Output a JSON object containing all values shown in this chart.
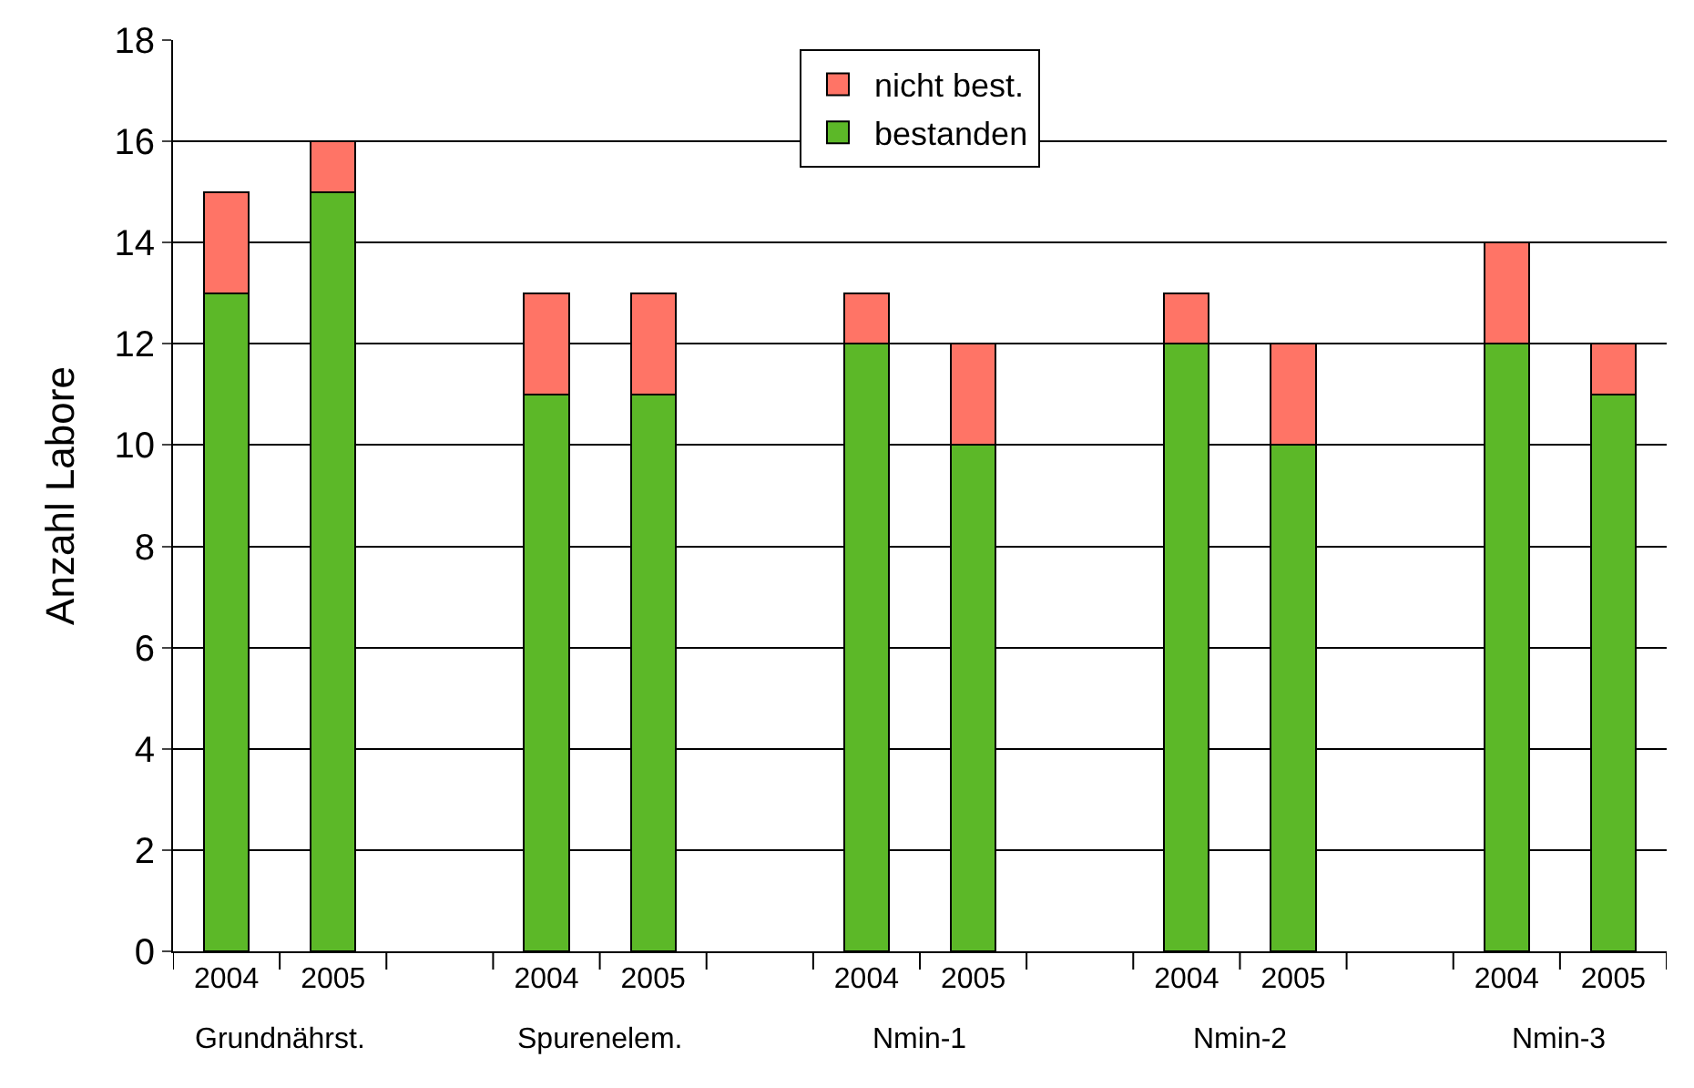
{
  "chart_data": {
    "type": "bar",
    "stacked": true,
    "ylabel": "Anzahl Labore",
    "categories": [
      "2004",
      "2005",
      null,
      "2004",
      "2005",
      null,
      "2004",
      "2005",
      null,
      "2004",
      "2005",
      null,
      "2004",
      "2005"
    ],
    "series": [
      {
        "name": "bestanden",
        "color": "#5cb828",
        "values": [
          13,
          15,
          null,
          11,
          11,
          null,
          12,
          10,
          null,
          12,
          10,
          null,
          12,
          11
        ]
      },
      {
        "name": "nicht best.",
        "color": "#ff7466",
        "values": [
          2,
          1,
          null,
          2,
          2,
          null,
          1,
          2,
          null,
          1,
          2,
          null,
          2,
          1
        ]
      }
    ],
    "annotations": [
      "Grundnährst.",
      "Spurenelem.",
      "Nmin-1",
      "Nmin-2",
      "Nmin-3"
    ],
    "ylim": [
      0,
      18
    ],
    "yticks": [
      0,
      2,
      4,
      6,
      8,
      10,
      12,
      14,
      16,
      18
    ],
    "grid": "y",
    "legend": "top"
  }
}
